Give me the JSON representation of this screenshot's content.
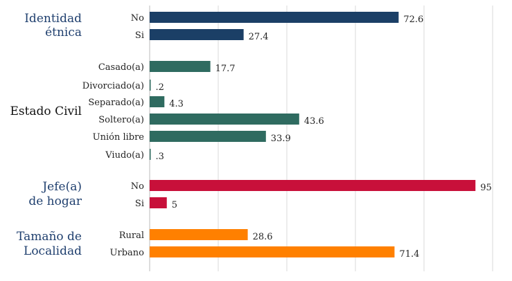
{
  "chart_data": {
    "type": "bar",
    "orientation": "horizontal",
    "xlim": [
      0,
      100
    ],
    "grid": true,
    "groups": [
      {
        "label_lines": [
          "Identidad",
          "étnica"
        ],
        "label_color": "#1f3f6e",
        "bar_color": "#1b3f66",
        "items": [
          {
            "label": "No",
            "value": 72.6,
            "value_label": "72.6"
          },
          {
            "label": "Si",
            "value": 27.4,
            "value_label": "27.4"
          }
        ]
      },
      {
        "label_lines": [
          "Estado Civil"
        ],
        "label_color": "#111111",
        "bar_color": "#2f6b60",
        "items": [
          {
            "label": "Casado(a)",
            "value": 17.7,
            "value_label": "17.7"
          },
          {
            "label": "Divorciado(a)",
            "value": 0.2,
            "value_label": ".2"
          },
          {
            "label": "Separado(a)",
            "value": 4.3,
            "value_label": "4.3"
          },
          {
            "label": "Soltero(a)",
            "value": 43.6,
            "value_label": "43.6"
          },
          {
            "label": "Unión libre",
            "value": 33.9,
            "value_label": "33.9"
          },
          {
            "label": "Viudo(a)",
            "value": 0.3,
            "value_label": ".3"
          }
        ]
      },
      {
        "label_lines": [
          "Jefe(a)",
          "de hogar"
        ],
        "label_color": "#1f3f6e",
        "bar_color": "#c8103a",
        "items": [
          {
            "label": "No",
            "value": 95,
            "value_label": "95"
          },
          {
            "label": "Si",
            "value": 5,
            "value_label": "5"
          }
        ]
      },
      {
        "label_lines": [
          "Tamaño de",
          "Localidad"
        ],
        "label_color": "#1f3f6e",
        "bar_color": "#ff8000",
        "items": [
          {
            "label": "Rural",
            "value": 28.6,
            "value_label": "28.6"
          },
          {
            "label": "Urbano",
            "value": 71.4,
            "value_label": "71.4"
          }
        ]
      }
    ]
  }
}
